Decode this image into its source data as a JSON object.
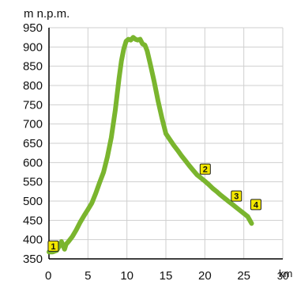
{
  "chart_data": {
    "type": "line",
    "ylabel": "m n.p.m.",
    "xlabel_unit": "km",
    "xlim": [
      0,
      30
    ],
    "ylim": [
      350,
      950
    ],
    "x_ticks": [
      0,
      5,
      10,
      15,
      20,
      25,
      30
    ],
    "x_tick_labels": [
      "0",
      "5",
      "10",
      "15",
      "20",
      "25",
      "30"
    ],
    "y_ticks": [
      350,
      400,
      450,
      500,
      550,
      600,
      650,
      700,
      750,
      800,
      850,
      900,
      950
    ],
    "y_tick_labels": [
      "350",
      "400",
      "450",
      "500",
      "550",
      "600",
      "650",
      "700",
      "750",
      "800",
      "850",
      "900",
      "950"
    ],
    "grid": true,
    "line_color": "#7ab52e",
    "marker_fill": "#f2e600",
    "series": [
      {
        "x": [
          0,
          0.5,
          1.0,
          1.3,
          1.6,
          1.8,
          2.0,
          2.2,
          2.5,
          3.0,
          3.5,
          4.0,
          4.5,
          5.0,
          5.5,
          6.0,
          6.5,
          7.0,
          7.5,
          8.0,
          8.5,
          9.0,
          9.3,
          9.6,
          9.9,
          10.2,
          10.5,
          10.8,
          11.1,
          11.4,
          11.7,
          12.0,
          12.3,
          12.6,
          13.0,
          13.5,
          14.0,
          14.5,
          15.0,
          15.5,
          16.0,
          16.5,
          17.0,
          17.5,
          18.0,
          18.5,
          19.0,
          19.5,
          20.0,
          20.5,
          21.0,
          21.5,
          22.0,
          22.5,
          23.0,
          23.5,
          24.0,
          24.5,
          25.0,
          25.5,
          26.0
        ],
        "y": [
          368,
          368,
          372,
          382,
          395,
          385,
          375,
          388,
          395,
          408,
          425,
          445,
          462,
          478,
          495,
          520,
          548,
          575,
          615,
          665,
          735,
          820,
          865,
          895,
          915,
          920,
          918,
          925,
          920,
          918,
          920,
          908,
          905,
          890,
          855,
          810,
          760,
          715,
          675,
          660,
          645,
          632,
          618,
          605,
          592,
          580,
          568,
          560,
          552,
          543,
          533,
          525,
          516,
          508,
          500,
          492,
          484,
          476,
          468,
          460,
          442
        ]
      }
    ],
    "markers": [
      {
        "label": "1",
        "x": 0.5,
        "y": 382
      },
      {
        "label": "2",
        "x": 20.0,
        "y": 582
      },
      {
        "label": "3",
        "x": 24.0,
        "y": 512
      },
      {
        "label": "4",
        "x": 26.5,
        "y": 490
      }
    ]
  }
}
